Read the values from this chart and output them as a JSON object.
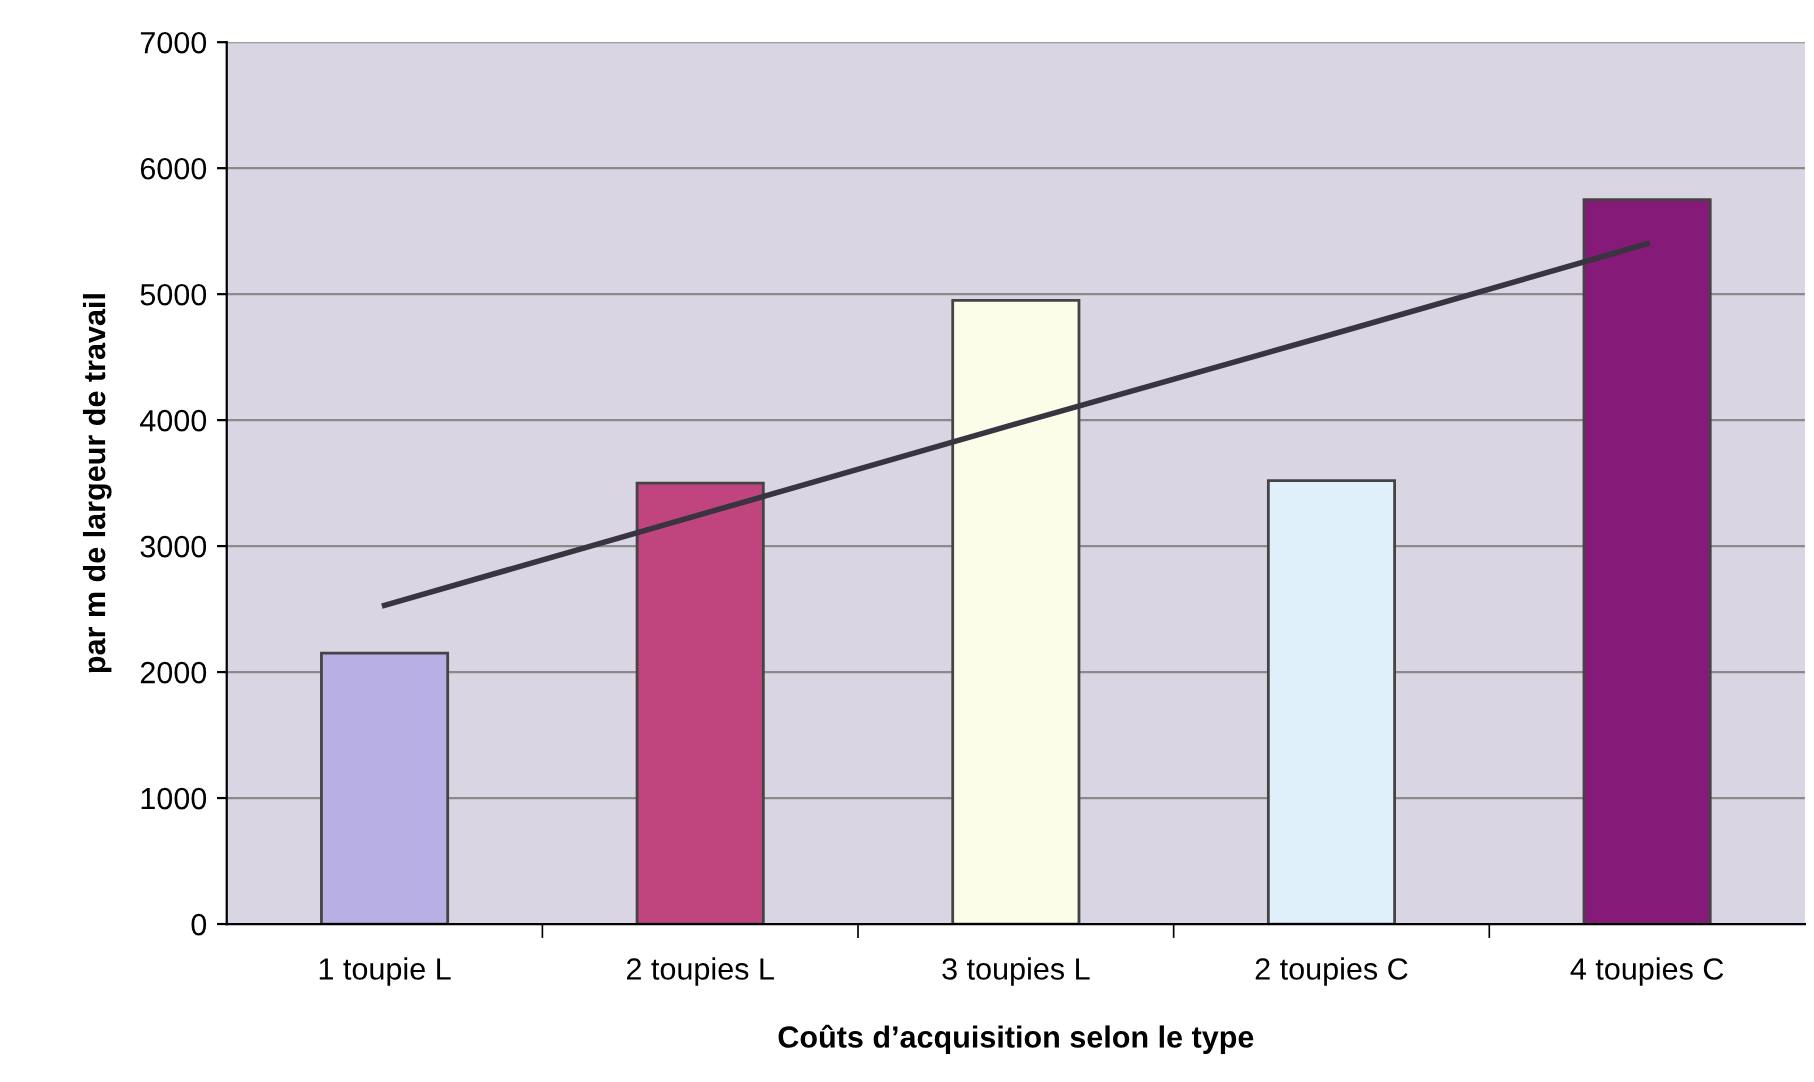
{
  "chart_data": {
    "type": "bar",
    "xlabel": "Coûts d’acquisition selon le type",
    "ylabel": "par m de largeur de travail",
    "categories": [
      "1 toupie L",
      "2 toupies L",
      "3 toupies L",
      "2 toupies C",
      "4 toupies C"
    ],
    "series": [
      {
        "values": [
          2150,
          3500,
          4950,
          3520,
          5750
        ],
        "colors": [
          "#b8b0e4",
          "#c0457e",
          "#fcfde8",
          "#dff0fb",
          "#861a78"
        ]
      },
      {
        "type": "line",
        "color": "#3a3440",
        "values": [
          2530,
          3250,
          3970,
          4680,
          5400
        ]
      }
    ],
    "ylim": [
      0,
      7000
    ],
    "yticks": [
      0,
      1000,
      2000,
      3000,
      4000,
      5000,
      6000,
      7000
    ],
    "grid": "y",
    "legend": false
  }
}
